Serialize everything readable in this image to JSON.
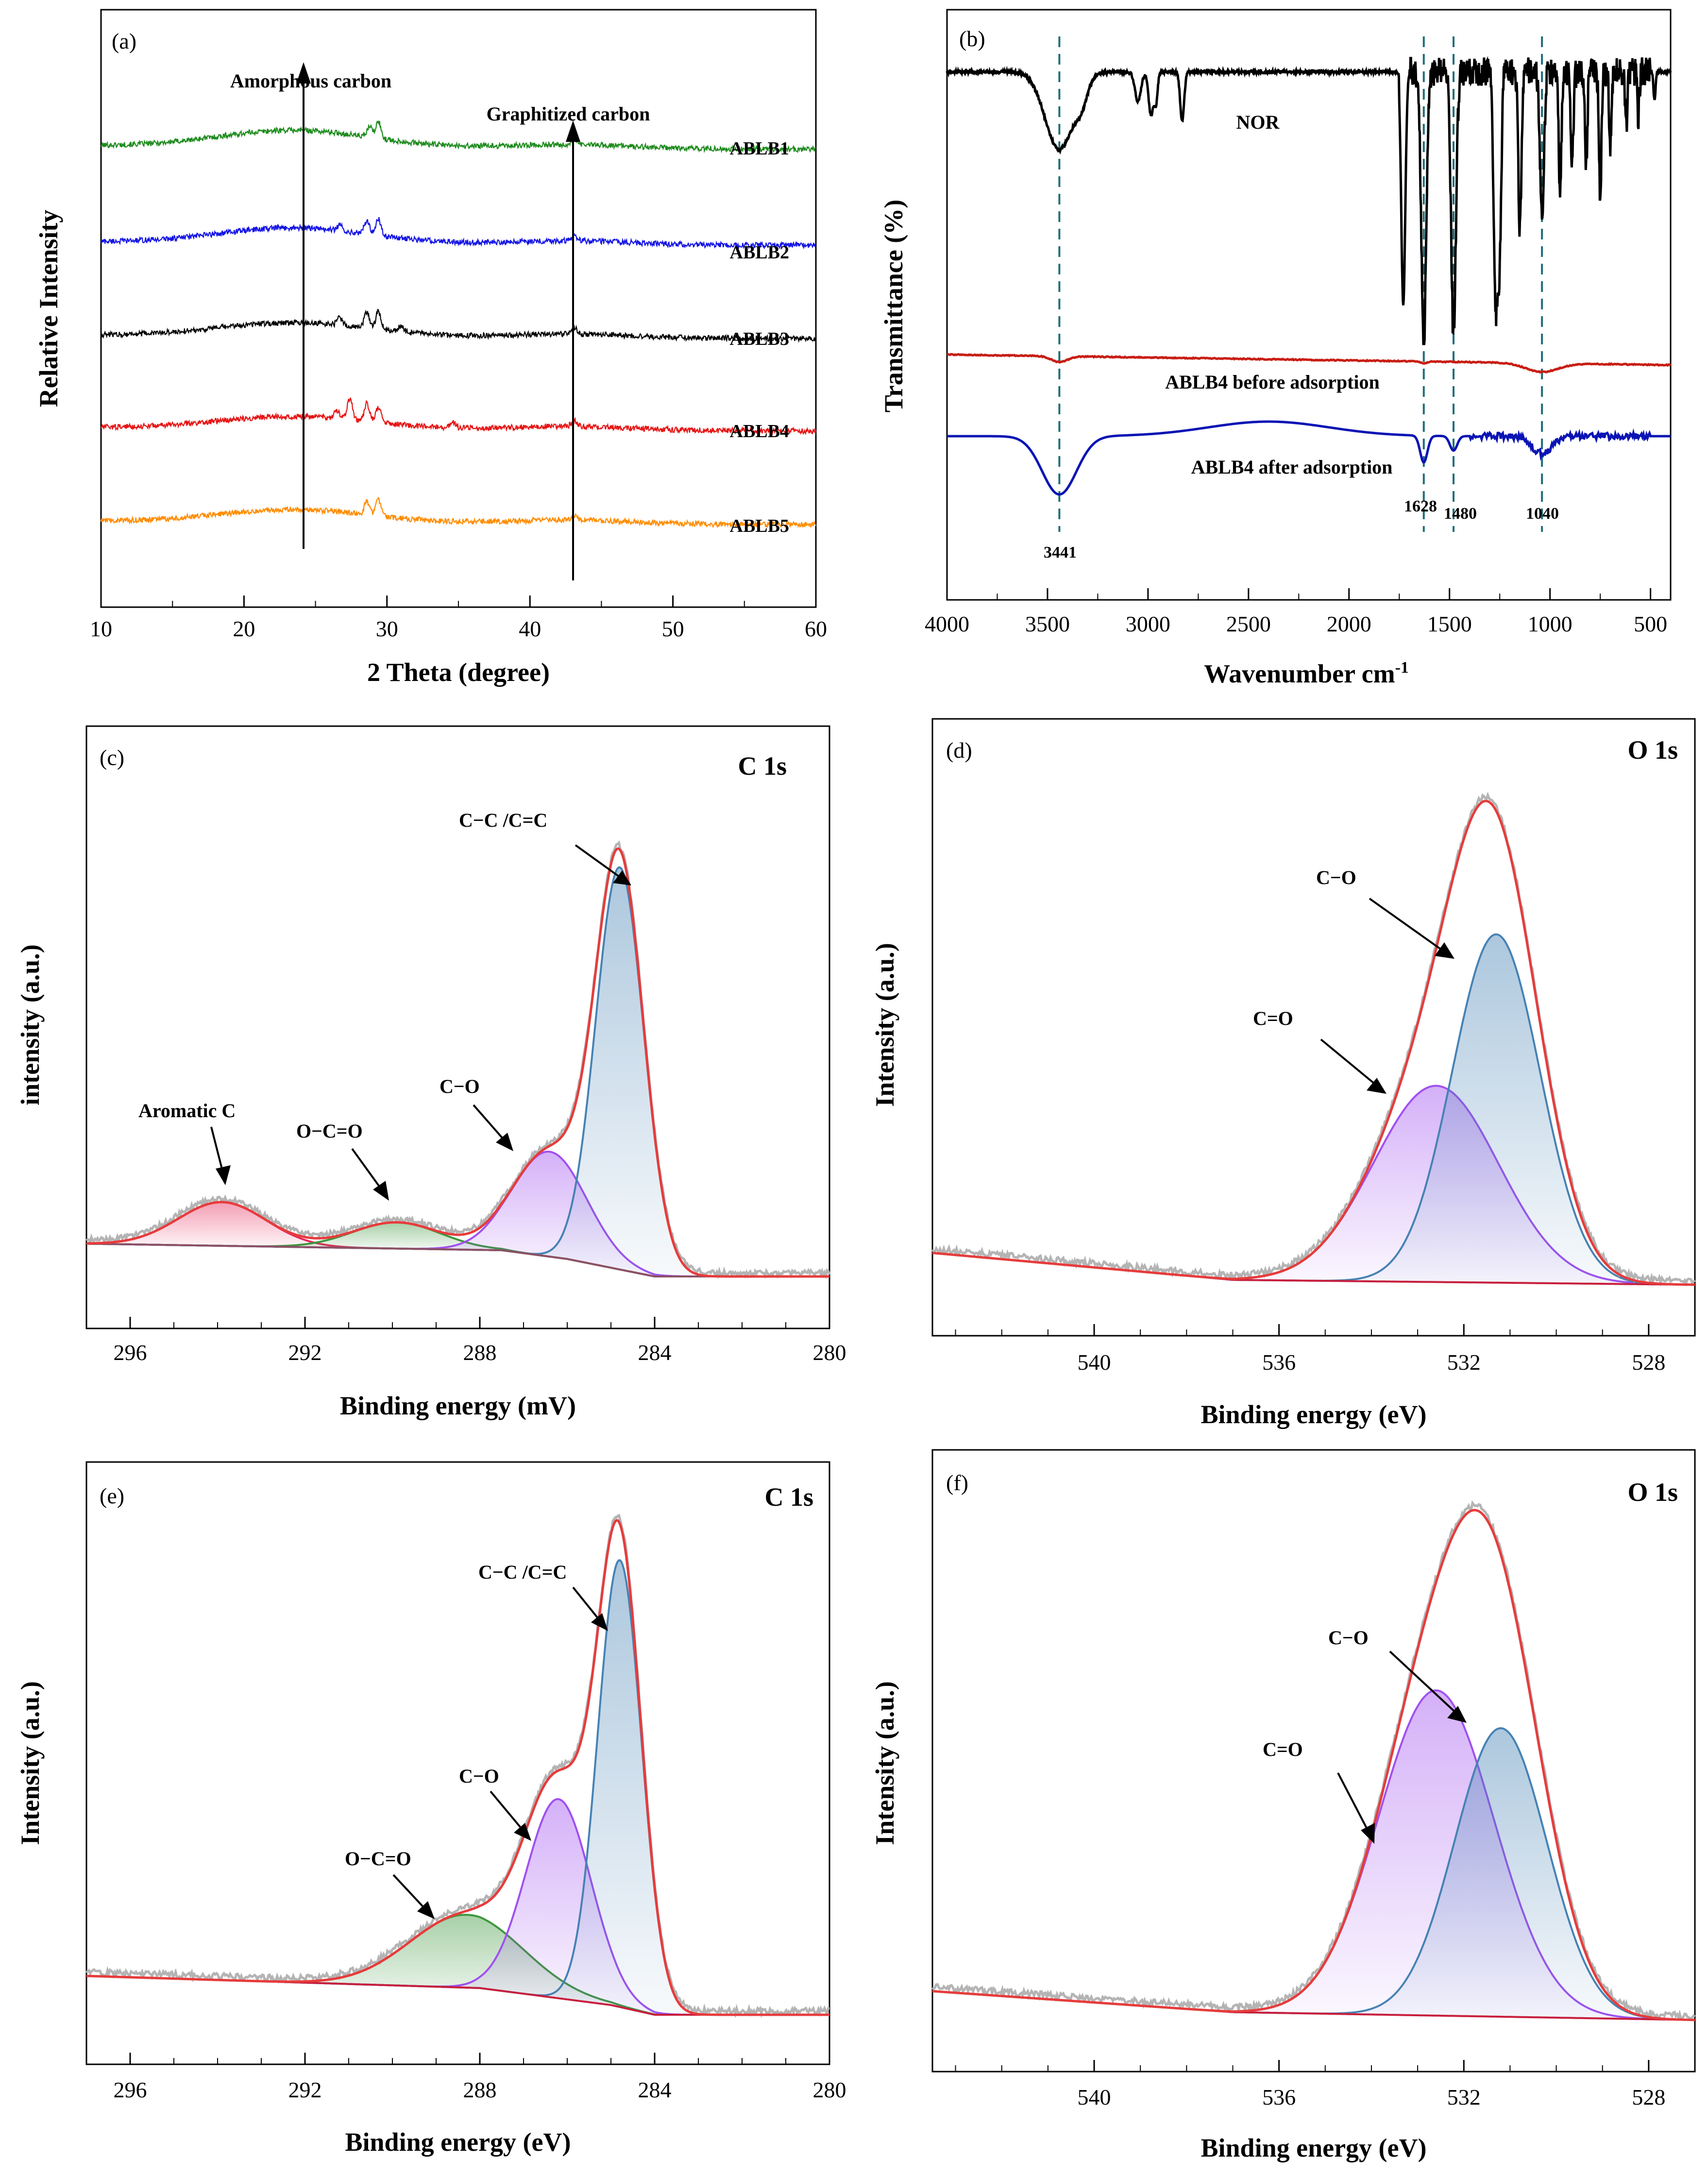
{
  "figure": {
    "colors": {
      "green": "#1e8c1e",
      "blue": "#1414e6",
      "black": "#000000",
      "red": "#e61414",
      "orange": "#ff8c00",
      "fit": "#e63c3c",
      "teal": "#1e6e7a",
      "gray": "#b4b4b4",
      "pink": "#e6285a",
      "olive": "#3c963c",
      "violet": "#a050f0",
      "steel": "#4682b4",
      "baseline_c": "#8c5064",
      "baseline_o": "#c81e3c",
      "darkred": "#c81e14",
      "navy": "#0a14b4"
    }
  },
  "chart_data": [
    {
      "id": "a",
      "panel_label": "(a)",
      "type": "line",
      "xlabel": "2 Theta (degree)",
      "ylabel": "Relative Intensity",
      "xlim": [
        10,
        60
      ],
      "xticks": [
        10,
        20,
        30,
        40,
        50,
        60
      ],
      "xminor": 5,
      "reversed": false,
      "series": [
        {
          "name": "ABLB1",
          "color": "green",
          "offset": 4.0,
          "halo_height": 0.55,
          "peaks": [
            [
              29.4,
              0.55
            ],
            [
              28.8,
              0.35
            ],
            [
              43.1,
              0.18
            ]
          ]
        },
        {
          "name": "ABLB2",
          "color": "blue",
          "offset": 3.0,
          "halo_height": 0.5,
          "peaks": [
            [
              29.4,
              0.55
            ],
            [
              28.6,
              0.45
            ],
            [
              26.7,
              0.18
            ],
            [
              43.1,
              0.18
            ]
          ]
        },
        {
          "name": "ABLB3",
          "color": "black",
          "offset": 2.0,
          "halo_height": 0.45,
          "peaks": [
            [
              29.4,
              0.6
            ],
            [
              28.6,
              0.55
            ],
            [
              26.7,
              0.25
            ],
            [
              31.0,
              0.2
            ],
            [
              43.1,
              0.22
            ]
          ]
        },
        {
          "name": "ABLB4",
          "color": "red",
          "offset": 1.0,
          "halo_height": 0.4,
          "peaks": [
            [
              27.4,
              0.7
            ],
            [
              28.6,
              0.6
            ],
            [
              29.4,
              0.5
            ],
            [
              26.5,
              0.25
            ],
            [
              34.6,
              0.2
            ],
            [
              43.1,
              0.2
            ]
          ]
        },
        {
          "name": "ABLB5",
          "color": "orange",
          "offset": 0.0,
          "halo_height": 0.42,
          "peaks": [
            [
              29.4,
              0.55
            ],
            [
              28.6,
              0.45
            ],
            [
              43.1,
              0.15
            ]
          ]
        }
      ],
      "annotations": [
        {
          "text": "Amorphous carbon",
          "x": 24.2
        },
        {
          "text": "Graphitized carbon",
          "x": 43.0
        }
      ]
    },
    {
      "id": "b",
      "panel_label": "(b)",
      "type": "line",
      "xlabel": "Wavenumber cm",
      "xlabel_sup": "-1",
      "ylabel": "Transmittance (%)",
      "xlim": [
        4000,
        400
      ],
      "xticks": [
        4000,
        3500,
        3000,
        2500,
        2000,
        1500,
        1000,
        500
      ],
      "xminor": 250,
      "reversed": true,
      "series": [
        {
          "name": "NOR",
          "color": "black"
        },
        {
          "name": "ABLB4 before adsorption",
          "color": "darkred"
        },
        {
          "name": "ABLB4 after adsorption",
          "color": "navy"
        }
      ],
      "marker_lines": [
        3441,
        1628,
        1480,
        1040
      ],
      "marker_labels": [
        "3441",
        "1628",
        "1480",
        "1040"
      ]
    },
    {
      "id": "c",
      "panel_label": "(c)",
      "type": "line",
      "title": "C 1s",
      "xlabel": "Binding energy (mV)",
      "ylabel": "intensity (a.u.)",
      "xlim": [
        297,
        280
      ],
      "xticks": [
        296,
        292,
        288,
        284,
        280
      ],
      "xminor": 1,
      "reversed": true,
      "baseline": [
        [
          297,
          0.075
        ],
        [
          287.5,
          0.06
        ],
        [
          286,
          0.04
        ],
        [
          284,
          0.0
        ],
        [
          280,
          0.0
        ]
      ],
      "components": [
        {
          "name": "Aromatic C",
          "center": 293.9,
          "height": 0.1,
          "sigma": 1.0,
          "color": "pink"
        },
        {
          "name": "O−C=O",
          "center": 289.9,
          "height": 0.06,
          "sigma": 1.0,
          "color": "olive"
        },
        {
          "name": "C−O",
          "center": 286.4,
          "height": 0.24,
          "sigma": 0.85,
          "color": "violet"
        },
        {
          "name": "C−C /C=C",
          "center": 284.8,
          "height": 0.92,
          "sigma": 0.55,
          "color": "steel"
        }
      ],
      "labels": [
        "Aromatic C",
        "O−C=O",
        "C−O",
        "C−C /C=C"
      ]
    },
    {
      "id": "d",
      "panel_label": "(d)",
      "type": "line",
      "title": "O 1s",
      "xlabel": "Binding energy (eV)",
      "ylabel": "Intensity (a.u.)",
      "xlim": [
        543.5,
        527
      ],
      "xticks": [
        540,
        536,
        532,
        528
      ],
      "xminor": 1,
      "reversed": true,
      "baseline": [
        [
          543.5,
          0.055
        ],
        [
          537,
          0.0
        ],
        [
          527,
          -0.01
        ]
      ],
      "components": [
        {
          "name": "C=O",
          "center": 532.6,
          "height": 0.4,
          "sigma": 1.35,
          "color": "violet"
        },
        {
          "name": "C−O",
          "center": 531.3,
          "height": 0.71,
          "sigma": 0.95,
          "color": "steel"
        }
      ],
      "labels": [
        "C−O",
        "C=O"
      ]
    },
    {
      "id": "e",
      "panel_label": "(e)",
      "type": "line",
      "title": "C 1s",
      "xlabel": "Binding energy (eV)",
      "ylabel": "Intensity (a.u.)",
      "xlim": [
        297,
        280
      ],
      "xticks": [
        296,
        292,
        288,
        284,
        280
      ],
      "xminor": 1,
      "reversed": true,
      "baseline": [
        [
          297,
          0.08
        ],
        [
          288,
          0.055
        ],
        [
          285,
          0.02
        ],
        [
          284,
          0.0
        ],
        [
          280,
          0.0
        ]
      ],
      "components": [
        {
          "name": "O−C=O",
          "center": 288.3,
          "height": 0.15,
          "sigma": 1.3,
          "color": "olive"
        },
        {
          "name": "C−O",
          "center": 286.2,
          "height": 0.41,
          "sigma": 0.75,
          "color": "violet"
        },
        {
          "name": "C−C /C=C",
          "center": 284.8,
          "height": 0.92,
          "sigma": 0.5,
          "color": "steel"
        }
      ],
      "labels": [
        "C−C /C=C",
        "C−O",
        "O−C=O"
      ]
    },
    {
      "id": "f",
      "panel_label": "(f)",
      "type": "line",
      "title": "O 1s",
      "xlabel": "Binding energy (eV)",
      "ylabel": "Intensity (a.u.)",
      "xlim": [
        543.5,
        527
      ],
      "xticks": [
        540,
        536,
        532,
        528
      ],
      "xminor": 1,
      "reversed": true,
      "baseline": [
        [
          543.5,
          0.045
        ],
        [
          537,
          0.005
        ],
        [
          527,
          -0.01
        ]
      ],
      "components": [
        {
          "name": "C=O",
          "center": 532.6,
          "height": 0.62,
          "sigma": 1.25,
          "color": "violet"
        },
        {
          "name": "C−O",
          "center": 531.2,
          "height": 0.55,
          "sigma": 1.0,
          "color": "steel"
        }
      ],
      "labels": [
        "C−O",
        "C=O"
      ]
    }
  ]
}
